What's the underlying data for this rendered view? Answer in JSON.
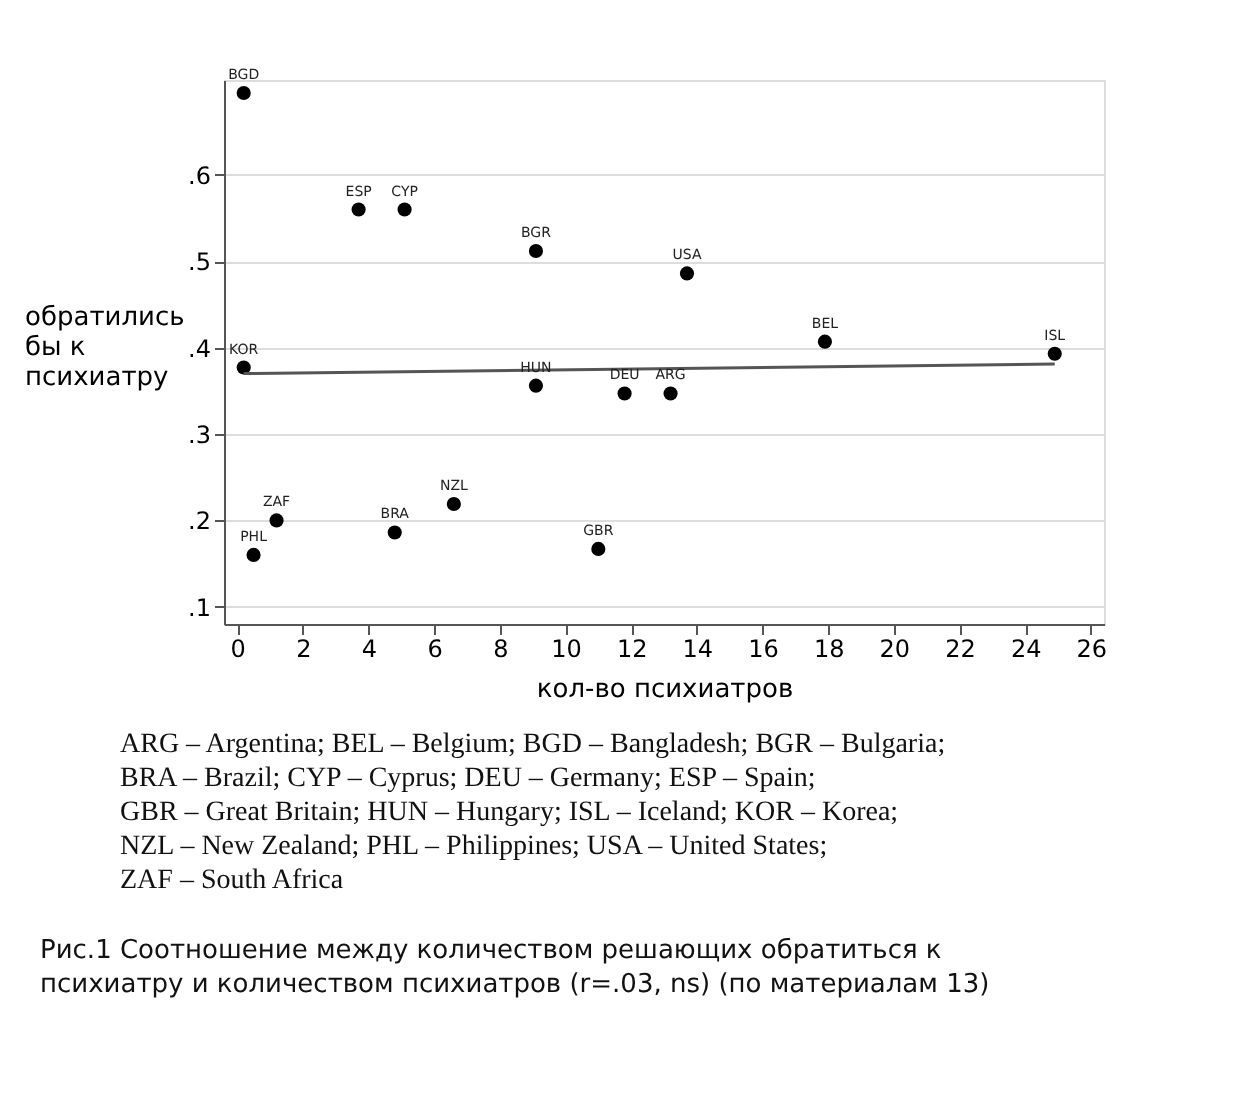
{
  "chart_data": {
    "type": "scatter",
    "xlabel": "кол-во психиатров",
    "ylabel": "обратились бы к психиатру",
    "xlim": [
      -0.4,
      26.4
    ],
    "xticks": [
      0,
      2,
      4,
      6,
      8,
      10,
      12,
      14,
      16,
      18,
      20,
      22,
      24,
      26
    ],
    "ylim": [
      0.08,
      0.71
    ],
    "yticks": [
      {
        "value": 0.1,
        "label": ".1"
      },
      {
        "value": 0.2,
        "label": ".2"
      },
      {
        "value": 0.3,
        "label": ".3"
      },
      {
        "value": 0.4,
        "label": ".4"
      },
      {
        "value": 0.5,
        "label": ".5"
      },
      {
        "value": 0.6,
        "label": ".6"
      }
    ],
    "grid": "y",
    "series": [
      {
        "marker": "circle",
        "color": "#000000",
        "x": [
          0.2,
          3.7,
          5.1,
          9.1,
          13.7,
          17.9,
          24.9,
          0.2,
          9.1,
          11.8,
          13.2,
          1.2,
          0.5,
          4.8,
          6.6,
          11.0
        ],
        "values": [
          0.695,
          0.56,
          0.56,
          0.512,
          0.486,
          0.407,
          0.393,
          0.377,
          0.356,
          0.347,
          0.347,
          0.2,
          0.16,
          0.186,
          0.219,
          0.167
        ]
      },
      {
        "type": "line",
        "color": "#555555",
        "x": [
          0.2,
          24.9
        ],
        "values": [
          0.37,
          0.381
        ]
      }
    ],
    "annotations": [
      {
        "text": "BGD",
        "x": 0.2,
        "y": 0.695
      },
      {
        "text": "ESP",
        "x": 3.7,
        "y": 0.56
      },
      {
        "text": "CYP",
        "x": 5.1,
        "y": 0.56
      },
      {
        "text": "BGR",
        "x": 9.1,
        "y": 0.512
      },
      {
        "text": "USA",
        "x": 13.7,
        "y": 0.486
      },
      {
        "text": "BEL",
        "x": 17.9,
        "y": 0.407
      },
      {
        "text": "ISL",
        "x": 24.9,
        "y": 0.393
      },
      {
        "text": "KOR",
        "x": 0.2,
        "y": 0.377
      },
      {
        "text": "HUN",
        "x": 9.1,
        "y": 0.356
      },
      {
        "text": "DEU",
        "x": 11.8,
        "y": 0.347
      },
      {
        "text": "ARG",
        "x": 13.2,
        "y": 0.347
      },
      {
        "text": "ZAF",
        "x": 1.2,
        "y": 0.2
      },
      {
        "text": "PHL",
        "x": 0.5,
        "y": 0.16
      },
      {
        "text": "BRA",
        "x": 4.8,
        "y": 0.186
      },
      {
        "text": "NZL",
        "x": 6.6,
        "y": 0.219
      },
      {
        "text": "GBR",
        "x": 11.0,
        "y": 0.167
      },
      "ARG – Argentina; BEL – Belgium; BGD – Bangladesh; BGR – Bulgaria;",
      "BRA – Brazil; CYP – Cyprus; DEU – Germany; ESP – Spain;",
      "GBR – Great Britain; HUN – Hungary; ISL – Iceland; KOR – Korea;",
      "NZL – New Zealand; PHL – Philippines; USA – United States;",
      "ZAF – South Africa",
      "Рис.1 Соотношение между количеством решающих обратиться к",
      "психиатру и количеством психиатров (r=.03, ns) (по материалам 13)"
    ]
  }
}
